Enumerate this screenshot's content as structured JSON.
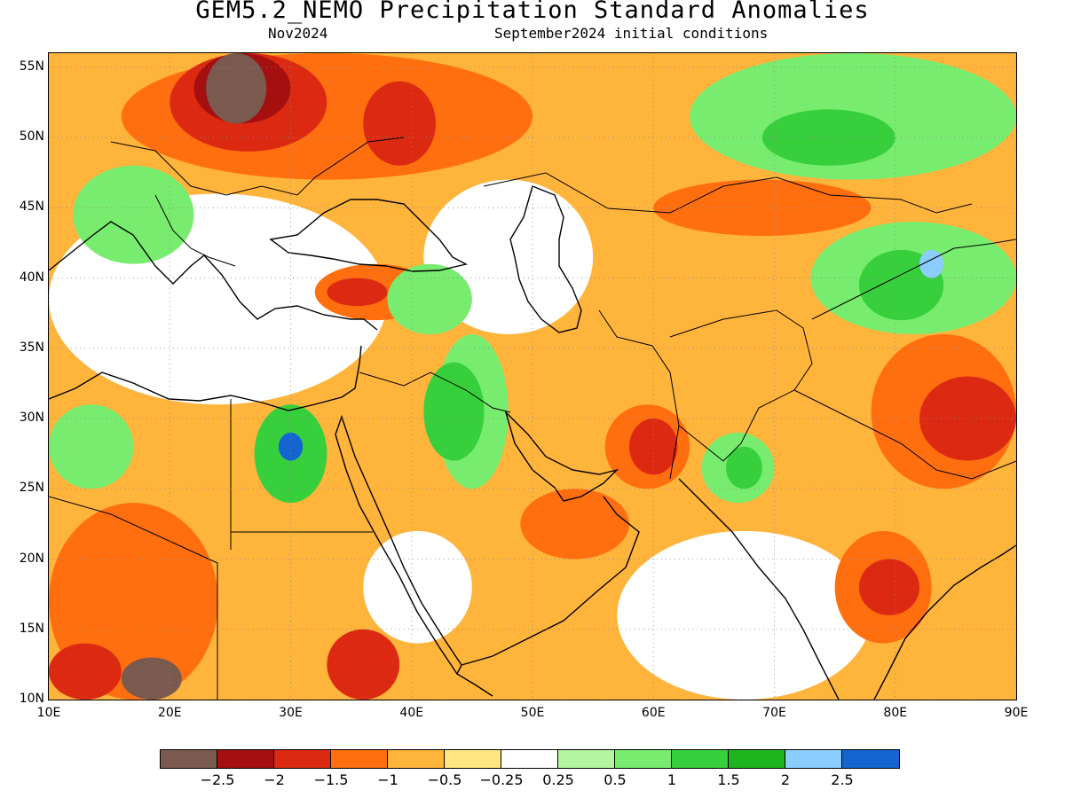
{
  "title": "GEM5.2_NEMO Precipitation Standard Anomalies",
  "subtitle_left": "Nov2024",
  "subtitle_right": "September2024 initial conditions",
  "map": {
    "lon_range": [
      10,
      90
    ],
    "lat_range": [
      10,
      56
    ],
    "lat_ticks": [
      "10N",
      "15N",
      "20N",
      "25N",
      "30N",
      "35N",
      "40N",
      "45N",
      "50N",
      "55N"
    ],
    "lon_ticks": [
      "10E",
      "20E",
      "30E",
      "40E",
      "50E",
      "60E",
      "70E",
      "80E",
      "90E"
    ],
    "grid": "dotted"
  },
  "colorbar": {
    "colors": [
      "#7a5a4e",
      "#a50f0f",
      "#dc2a12",
      "#ff6f0f",
      "#ffb43c",
      "#ffe680",
      "#ffffff",
      "#b4f5a0",
      "#78ec6e",
      "#37d03c",
      "#1eb41e",
      "#8ccdff",
      "#1464d2"
    ],
    "labels": [
      "−2.5",
      "−2",
      "−1.5",
      "−1",
      "−0.5",
      "−0.25",
      "0.25",
      "0.5",
      "1",
      "1.5",
      "2",
      "2.5"
    ]
  },
  "regions": [
    {
      "category": "−1 to −0.5",
      "color": "#ffb43c",
      "lon": [
        10,
        90
      ],
      "lat": [
        10,
        56
      ]
    },
    {
      "category": "−0.25 to 0.25",
      "color": "#ffffff",
      "lon": [
        10,
        38
      ],
      "lat": [
        31,
        46
      ]
    },
    {
      "category": "−0.25 to 0.25",
      "color": "#ffffff",
      "lon": [
        41,
        55
      ],
      "lat": [
        36,
        47
      ]
    },
    {
      "category": "−0.25 to 0.25",
      "color": "#ffffff",
      "lon": [
        57,
        78
      ],
      "lat": [
        10,
        22
      ]
    },
    {
      "category": "−0.25 to 0.25",
      "color": "#ffffff",
      "lon": [
        36,
        45
      ],
      "lat": [
        14,
        22
      ]
    },
    {
      "category": "−0.25 to 0.25",
      "color": "#ffffff",
      "lon": [
        13,
        25
      ],
      "lat": [
        33,
        44
      ]
    },
    {
      "category": "−1.5 to −1",
      "color": "#ff6f0f",
      "lon": [
        16,
        50
      ],
      "lat": [
        47,
        56
      ]
    },
    {
      "category": "−2 to −1.5",
      "color": "#dc2a12",
      "lon": [
        20,
        33
      ],
      "lat": [
        49,
        56
      ]
    },
    {
      "category": "−2.5 to −2",
      "color": "#a50f0f",
      "lon": [
        22,
        30
      ],
      "lat": [
        51,
        56
      ]
    },
    {
      "category": "< −2.5",
      "color": "#7a5a4e",
      "lon": [
        23,
        28
      ],
      "lat": [
        51,
        56
      ]
    },
    {
      "category": "−2 to −1.5",
      "color": "#dc2a12",
      "lon": [
        36,
        42
      ],
      "lat": [
        48,
        54
      ]
    },
    {
      "category": "−1.5 to −1",
      "color": "#ff6f0f",
      "lon": [
        32,
        42
      ],
      "lat": [
        37,
        41
      ]
    },
    {
      "category": "−2 to −1.5",
      "color": "#dc2a12",
      "lon": [
        33,
        38
      ],
      "lat": [
        38,
        40
      ]
    },
    {
      "category": "0.5 to 1",
      "color": "#78ec6e",
      "lon": [
        63,
        90
      ],
      "lat": [
        47,
        56
      ]
    },
    {
      "category": "1 to 1.5",
      "color": "#37d03c",
      "lon": [
        69,
        80
      ],
      "lat": [
        48,
        52
      ]
    },
    {
      "category": "0.5 to 1",
      "color": "#78ec6e",
      "lon": [
        73,
        90
      ],
      "lat": [
        36,
        44
      ]
    },
    {
      "category": "1 to 1.5",
      "color": "#37d03c",
      "lon": [
        77,
        84
      ],
      "lat": [
        37,
        42
      ]
    },
    {
      "category": "2 to 2.5",
      "color": "#8ccdff",
      "lon": [
        82,
        84
      ],
      "lat": [
        40,
        42
      ]
    },
    {
      "category": "−1.5 to −1",
      "color": "#ff6f0f",
      "lon": [
        60,
        78
      ],
      "lat": [
        43,
        47
      ]
    },
    {
      "category": "0.5 to 1",
      "color": "#78ec6e",
      "lon": [
        42,
        48
      ],
      "lat": [
        25,
        36
      ]
    },
    {
      "category": "1 to 1.5",
      "color": "#37d03c",
      "lon": [
        41,
        46
      ],
      "lat": [
        27,
        34
      ]
    },
    {
      "category": "1 to 1.5",
      "color": "#37d03c",
      "lon": [
        27,
        33
      ],
      "lat": [
        24,
        31
      ]
    },
    {
      "category": "2.5 and above",
      "color": "#1464d2",
      "lon": [
        29,
        31
      ],
      "lat": [
        27,
        29
      ]
    },
    {
      "category": "0.5 to 1",
      "color": "#78ec6e",
      "lon": [
        10,
        17
      ],
      "lat": [
        25,
        31
      ]
    },
    {
      "category": "0.5 to 1",
      "color": "#78ec6e",
      "lon": [
        64,
        70
      ],
      "lat": [
        24,
        29
      ]
    },
    {
      "category": "1 to 1.5",
      "color": "#37d03c",
      "lon": [
        66,
        69
      ],
      "lat": [
        25,
        28
      ]
    },
    {
      "category": "−1.5 to −1",
      "color": "#ff6f0f",
      "lon": [
        49,
        58
      ],
      "lat": [
        20,
        25
      ]
    },
    {
      "category": "−1.5 to −1",
      "color": "#ff6f0f",
      "lon": [
        56,
        63
      ],
      "lat": [
        25,
        31
      ]
    },
    {
      "category": "−2 to −1.5",
      "color": "#dc2a12",
      "lon": [
        58,
        62
      ],
      "lat": [
        26,
        30
      ]
    },
    {
      "category": "−1.5 to −1",
      "color": "#ff6f0f",
      "lon": [
        78,
        90
      ],
      "lat": [
        25,
        36
      ]
    },
    {
      "category": "−2 to −1.5",
      "color": "#dc2a12",
      "lon": [
        82,
        90
      ],
      "lat": [
        27,
        33
      ]
    },
    {
      "category": "−1.5 to −1",
      "color": "#ff6f0f",
      "lon": [
        75,
        83
      ],
      "lat": [
        14,
        22
      ]
    },
    {
      "category": "−2 to −1.5",
      "color": "#dc2a12",
      "lon": [
        77,
        82
      ],
      "lat": [
        16,
        20
      ]
    },
    {
      "category": "−1.5 to −1",
      "color": "#ff6f0f",
      "lon": [
        10,
        24
      ],
      "lat": [
        10,
        24
      ]
    },
    {
      "category": "−2 to −1.5",
      "color": "#dc2a12",
      "lon": [
        10,
        16
      ],
      "lat": [
        10,
        14
      ]
    },
    {
      "category": "< −2.5",
      "color": "#7a5a4e",
      "lon": [
        16,
        21
      ],
      "lat": [
        10,
        13
      ]
    },
    {
      "category": "−2 to −1.5",
      "color": "#dc2a12",
      "lon": [
        33,
        39
      ],
      "lat": [
        10,
        15
      ]
    },
    {
      "category": "0.5 to 1",
      "color": "#78ec6e",
      "lon": [
        12,
        22
      ],
      "lat": [
        41,
        48
      ]
    },
    {
      "category": "0.5 to 1",
      "color": "#78ec6e",
      "lon": [
        38,
        45
      ],
      "lat": [
        36,
        41
      ]
    }
  ]
}
